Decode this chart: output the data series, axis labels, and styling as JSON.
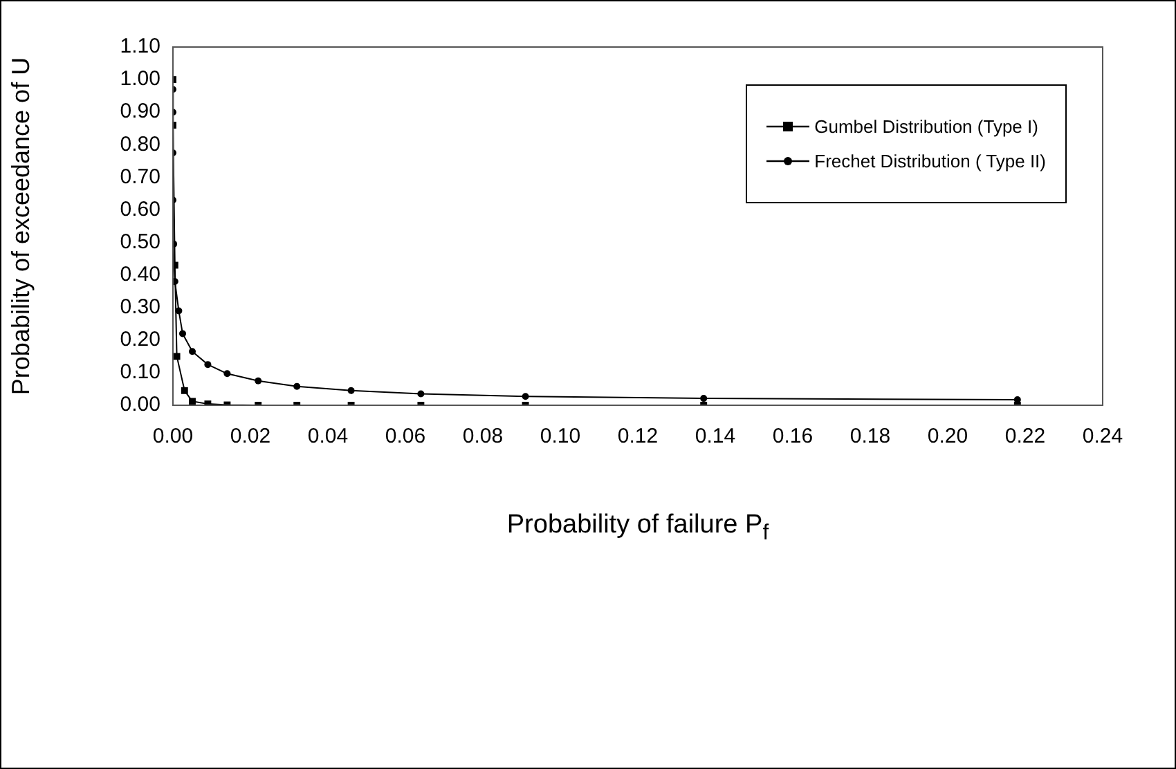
{
  "chart_data": {
    "type": "line",
    "xlabel": "Probability of failure P$_{f}$",
    "ylabel": "Probability of exceedance of U",
    "series": [
      {
        "name": "Gumbel Distribution (Type I)",
        "color": "#000000",
        "marker": "square",
        "x": [
          0,
          0,
          0.0005,
          0.001,
          0.003,
          0.005,
          0.009,
          0.014,
          0.022,
          0.032,
          0.046,
          0.064,
          0.091,
          0.137,
          0.218
        ],
        "values": [
          1.0,
          0.86,
          0.43,
          0.15,
          0.045,
          0.012,
          0.004,
          0.001,
          0,
          0,
          0,
          0,
          0,
          0,
          0
        ]
      },
      {
        "name": "Frechet Distribution ( Type II)",
        "color": "#000000",
        "marker": "circle",
        "x": [
          0,
          0,
          0,
          0,
          0.0002,
          0.0005,
          0.0015,
          0.0025,
          0.005,
          0.009,
          0.014,
          0.022,
          0.032,
          0.046,
          0.064,
          0.091,
          0.137,
          0.218
        ],
        "values": [
          0.97,
          0.9,
          0.775,
          0.63,
          0.495,
          0.38,
          0.29,
          0.22,
          0.165,
          0.125,
          0.097,
          0.075,
          0.058,
          0.045,
          0.035,
          0.027,
          0.021,
          0.017
        ]
      }
    ],
    "xlim": [
      0,
      0.24
    ],
    "xticks": [
      {
        "value": 0,
        "label": "0.00"
      },
      {
        "value": 0.02,
        "label": "0.02"
      },
      {
        "value": 0.04,
        "label": "0.04"
      },
      {
        "value": 0.06,
        "label": "0.06"
      },
      {
        "value": 0.08,
        "label": "0.08"
      },
      {
        "value": 0.1,
        "label": "0.10"
      },
      {
        "value": 0.12,
        "label": "0.12"
      },
      {
        "value": 0.14,
        "label": "0.14"
      },
      {
        "value": 0.16,
        "label": "0.16"
      },
      {
        "value": 0.18,
        "label": "0.18"
      },
      {
        "value": 0.2,
        "label": "0.20"
      },
      {
        "value": 0.22,
        "label": "0.22"
      },
      {
        "value": 0.24,
        "label": "0.24"
      }
    ],
    "ylim": [
      0,
      1.1
    ],
    "yticks": [
      {
        "value": 0,
        "label": "0.00"
      },
      {
        "value": 0.1,
        "label": "0.10"
      },
      {
        "value": 0.2,
        "label": "0.20"
      },
      {
        "value": 0.3,
        "label": "0.30"
      },
      {
        "value": 0.4,
        "label": "0.40"
      },
      {
        "value": 0.5,
        "label": "0.50"
      },
      {
        "value": 0.6,
        "label": "0.60"
      },
      {
        "value": 0.7,
        "label": "0.70"
      },
      {
        "value": 0.8,
        "label": "0.80"
      },
      {
        "value": 0.9,
        "label": "0.90"
      },
      {
        "value": 1.0,
        "label": "1.00"
      },
      {
        "value": 1.1,
        "label": "1.10"
      }
    ],
    "grid": false,
    "legend": "top right"
  }
}
